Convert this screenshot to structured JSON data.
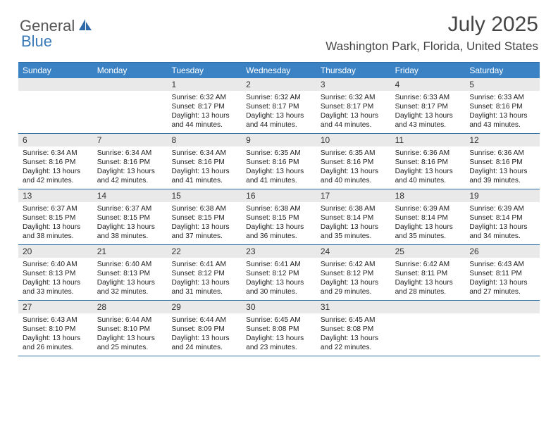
{
  "logo": {
    "part1": "General",
    "part2": "Blue"
  },
  "title": "July 2025",
  "location": "Washington Park, Florida, United States",
  "colors": {
    "header_bg": "#3b82c4",
    "header_text": "#ffffff",
    "border": "#2e6da4",
    "daynum_bg": "#e9e9e9",
    "text": "#222222",
    "logo_gray": "#555555",
    "logo_blue": "#3a7ab8"
  },
  "day_names": [
    "Sunday",
    "Monday",
    "Tuesday",
    "Wednesday",
    "Thursday",
    "Friday",
    "Saturday"
  ],
  "weeks": [
    [
      {
        "day": "",
        "lines": []
      },
      {
        "day": "",
        "lines": []
      },
      {
        "day": "1",
        "lines": [
          "Sunrise: 6:32 AM",
          "Sunset: 8:17 PM",
          "Daylight: 13 hours and 44 minutes."
        ]
      },
      {
        "day": "2",
        "lines": [
          "Sunrise: 6:32 AM",
          "Sunset: 8:17 PM",
          "Daylight: 13 hours and 44 minutes."
        ]
      },
      {
        "day": "3",
        "lines": [
          "Sunrise: 6:32 AM",
          "Sunset: 8:17 PM",
          "Daylight: 13 hours and 44 minutes."
        ]
      },
      {
        "day": "4",
        "lines": [
          "Sunrise: 6:33 AM",
          "Sunset: 8:17 PM",
          "Daylight: 13 hours and 43 minutes."
        ]
      },
      {
        "day": "5",
        "lines": [
          "Sunrise: 6:33 AM",
          "Sunset: 8:16 PM",
          "Daylight: 13 hours and 43 minutes."
        ]
      }
    ],
    [
      {
        "day": "6",
        "lines": [
          "Sunrise: 6:34 AM",
          "Sunset: 8:16 PM",
          "Daylight: 13 hours and 42 minutes."
        ]
      },
      {
        "day": "7",
        "lines": [
          "Sunrise: 6:34 AM",
          "Sunset: 8:16 PM",
          "Daylight: 13 hours and 42 minutes."
        ]
      },
      {
        "day": "8",
        "lines": [
          "Sunrise: 6:34 AM",
          "Sunset: 8:16 PM",
          "Daylight: 13 hours and 41 minutes."
        ]
      },
      {
        "day": "9",
        "lines": [
          "Sunrise: 6:35 AM",
          "Sunset: 8:16 PM",
          "Daylight: 13 hours and 41 minutes."
        ]
      },
      {
        "day": "10",
        "lines": [
          "Sunrise: 6:35 AM",
          "Sunset: 8:16 PM",
          "Daylight: 13 hours and 40 minutes."
        ]
      },
      {
        "day": "11",
        "lines": [
          "Sunrise: 6:36 AM",
          "Sunset: 8:16 PM",
          "Daylight: 13 hours and 40 minutes."
        ]
      },
      {
        "day": "12",
        "lines": [
          "Sunrise: 6:36 AM",
          "Sunset: 8:16 PM",
          "Daylight: 13 hours and 39 minutes."
        ]
      }
    ],
    [
      {
        "day": "13",
        "lines": [
          "Sunrise: 6:37 AM",
          "Sunset: 8:15 PM",
          "Daylight: 13 hours and 38 minutes."
        ]
      },
      {
        "day": "14",
        "lines": [
          "Sunrise: 6:37 AM",
          "Sunset: 8:15 PM",
          "Daylight: 13 hours and 38 minutes."
        ]
      },
      {
        "day": "15",
        "lines": [
          "Sunrise: 6:38 AM",
          "Sunset: 8:15 PM",
          "Daylight: 13 hours and 37 minutes."
        ]
      },
      {
        "day": "16",
        "lines": [
          "Sunrise: 6:38 AM",
          "Sunset: 8:15 PM",
          "Daylight: 13 hours and 36 minutes."
        ]
      },
      {
        "day": "17",
        "lines": [
          "Sunrise: 6:38 AM",
          "Sunset: 8:14 PM",
          "Daylight: 13 hours and 35 minutes."
        ]
      },
      {
        "day": "18",
        "lines": [
          "Sunrise: 6:39 AM",
          "Sunset: 8:14 PM",
          "Daylight: 13 hours and 35 minutes."
        ]
      },
      {
        "day": "19",
        "lines": [
          "Sunrise: 6:39 AM",
          "Sunset: 8:14 PM",
          "Daylight: 13 hours and 34 minutes."
        ]
      }
    ],
    [
      {
        "day": "20",
        "lines": [
          "Sunrise: 6:40 AM",
          "Sunset: 8:13 PM",
          "Daylight: 13 hours and 33 minutes."
        ]
      },
      {
        "day": "21",
        "lines": [
          "Sunrise: 6:40 AM",
          "Sunset: 8:13 PM",
          "Daylight: 13 hours and 32 minutes."
        ]
      },
      {
        "day": "22",
        "lines": [
          "Sunrise: 6:41 AM",
          "Sunset: 8:12 PM",
          "Daylight: 13 hours and 31 minutes."
        ]
      },
      {
        "day": "23",
        "lines": [
          "Sunrise: 6:41 AM",
          "Sunset: 8:12 PM",
          "Daylight: 13 hours and 30 minutes."
        ]
      },
      {
        "day": "24",
        "lines": [
          "Sunrise: 6:42 AM",
          "Sunset: 8:12 PM",
          "Daylight: 13 hours and 29 minutes."
        ]
      },
      {
        "day": "25",
        "lines": [
          "Sunrise: 6:42 AM",
          "Sunset: 8:11 PM",
          "Daylight: 13 hours and 28 minutes."
        ]
      },
      {
        "day": "26",
        "lines": [
          "Sunrise: 6:43 AM",
          "Sunset: 8:11 PM",
          "Daylight: 13 hours and 27 minutes."
        ]
      }
    ],
    [
      {
        "day": "27",
        "lines": [
          "Sunrise: 6:43 AM",
          "Sunset: 8:10 PM",
          "Daylight: 13 hours and 26 minutes."
        ]
      },
      {
        "day": "28",
        "lines": [
          "Sunrise: 6:44 AM",
          "Sunset: 8:10 PM",
          "Daylight: 13 hours and 25 minutes."
        ]
      },
      {
        "day": "29",
        "lines": [
          "Sunrise: 6:44 AM",
          "Sunset: 8:09 PM",
          "Daylight: 13 hours and 24 minutes."
        ]
      },
      {
        "day": "30",
        "lines": [
          "Sunrise: 6:45 AM",
          "Sunset: 8:08 PM",
          "Daylight: 13 hours and 23 minutes."
        ]
      },
      {
        "day": "31",
        "lines": [
          "Sunrise: 6:45 AM",
          "Sunset: 8:08 PM",
          "Daylight: 13 hours and 22 minutes."
        ]
      },
      {
        "day": "",
        "lines": []
      },
      {
        "day": "",
        "lines": []
      }
    ]
  ]
}
